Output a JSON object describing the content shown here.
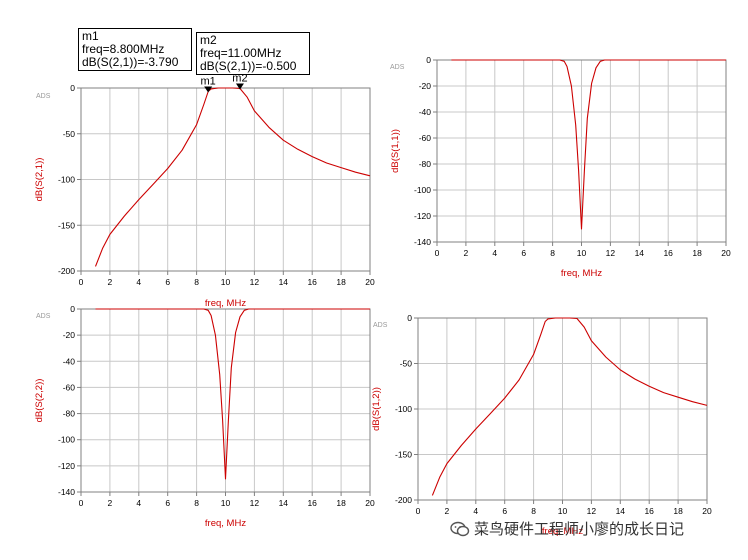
{
  "chart_data": [
    {
      "id": "s21",
      "type": "line",
      "ads_tag": "ADS",
      "ylabel": "dB(S(2,1))",
      "xlabel": "freq, MHz",
      "xlim": [
        0,
        20
      ],
      "ylim": [
        -200,
        0
      ],
      "xticks": [
        0,
        2,
        4,
        6,
        8,
        10,
        12,
        14,
        16,
        18,
        20
      ],
      "yticks": [
        0,
        -50,
        -100,
        -150,
        -200
      ],
      "grid": true,
      "series": [
        {
          "name": "dB(S(2,1))",
          "color": "#cc0000",
          "x": [
            1,
            1.5,
            2,
            3,
            4,
            5,
            6,
            7,
            8,
            8.5,
            8.8,
            9,
            9.5,
            10,
            10.5,
            11,
            11.5,
            12,
            13,
            14,
            15,
            16,
            17,
            18,
            19,
            20
          ],
          "y": [
            -195,
            -175,
            -160,
            -140,
            -122,
            -105,
            -88,
            -68,
            -40,
            -18,
            -3.8,
            -1,
            0,
            0,
            0,
            -0.5,
            -10,
            -25,
            -43,
            -57,
            -67,
            -75,
            -82,
            -87,
            -92,
            -96
          ]
        }
      ],
      "markers": [
        {
          "name": "m1",
          "x": 8.8,
          "y": -3.79,
          "lines": [
            "m1",
            "freq=8.800MHz",
            "dB(S(2,1))=-3.790"
          ]
        },
        {
          "name": "m2",
          "x": 11.0,
          "y": -0.5,
          "lines": [
            "m2",
            "freq=11.00MHz",
            "dB(S(2,1))=-0.500"
          ]
        }
      ]
    },
    {
      "id": "s11",
      "type": "line",
      "ads_tag": "ADS",
      "ylabel": "dB(S(1,1))",
      "xlabel": "freq, MHz",
      "xlim": [
        0,
        20
      ],
      "ylim": [
        -140,
        0
      ],
      "xticks": [
        0,
        2,
        4,
        6,
        8,
        10,
        12,
        14,
        16,
        18,
        20
      ],
      "yticks": [
        0,
        -20,
        -40,
        -60,
        -80,
        -100,
        -120,
        -140
      ],
      "grid": true,
      "series": [
        {
          "name": "dB(S(1,1))",
          "color": "#cc0000",
          "x": [
            1,
            5,
            8.5,
            8.8,
            9,
            9.3,
            9.6,
            9.8,
            10,
            10.2,
            10.4,
            10.7,
            11,
            11.3,
            11.6,
            15,
            20
          ],
          "y": [
            0,
            0,
            0,
            -1,
            -5,
            -20,
            -50,
            -85,
            -130,
            -85,
            -45,
            -18,
            -6,
            -1,
            0,
            0,
            0
          ]
        }
      ]
    },
    {
      "id": "s22",
      "type": "line",
      "ads_tag": "ADS",
      "ylabel": "dB(S(2,2))",
      "xlabel": "freq, MHz",
      "xlim": [
        0,
        20
      ],
      "ylim": [
        -140,
        0
      ],
      "xticks": [
        0,
        2,
        4,
        6,
        8,
        10,
        12,
        14,
        16,
        18,
        20
      ],
      "yticks": [
        0,
        -20,
        -40,
        -60,
        -80,
        -100,
        -120,
        -140
      ],
      "grid": true,
      "series": [
        {
          "name": "dB(S(2,2))",
          "color": "#cc0000",
          "x": [
            1,
            5,
            8.5,
            8.8,
            9,
            9.3,
            9.6,
            9.8,
            10,
            10.2,
            10.4,
            10.7,
            11,
            11.3,
            11.6,
            15,
            20
          ],
          "y": [
            0,
            0,
            0,
            -1,
            -5,
            -20,
            -50,
            -85,
            -130,
            -85,
            -45,
            -18,
            -6,
            -1,
            0,
            0,
            0
          ]
        }
      ]
    },
    {
      "id": "s12",
      "type": "line",
      "ads_tag": "ADS",
      "ylabel": "dB(S(1,2))",
      "xlabel": "freq, MHz",
      "xlim": [
        0,
        20
      ],
      "ylim": [
        -200,
        0
      ],
      "xticks": [
        0,
        2,
        4,
        6,
        8,
        10,
        12,
        14,
        16,
        18,
        20
      ],
      "yticks": [
        0,
        -50,
        -100,
        -150,
        -200
      ],
      "grid": true,
      "series": [
        {
          "name": "dB(S(1,2))",
          "color": "#cc0000",
          "x": [
            1,
            1.5,
            2,
            3,
            4,
            5,
            6,
            7,
            8,
            8.5,
            8.8,
            9,
            9.5,
            10,
            10.5,
            11,
            11.5,
            12,
            13,
            14,
            15,
            16,
            17,
            18,
            19,
            20
          ],
          "y": [
            -195,
            -175,
            -160,
            -140,
            -122,
            -105,
            -88,
            -68,
            -40,
            -18,
            -3.8,
            -1,
            0,
            0,
            0,
            -0.5,
            -10,
            -25,
            -43,
            -57,
            -67,
            -75,
            -82,
            -87,
            -92,
            -96
          ]
        }
      ]
    }
  ],
  "watermark": {
    "text": "菜鸟硬件工程师小廖的成长日记",
    "icon": "wechat-icon"
  }
}
